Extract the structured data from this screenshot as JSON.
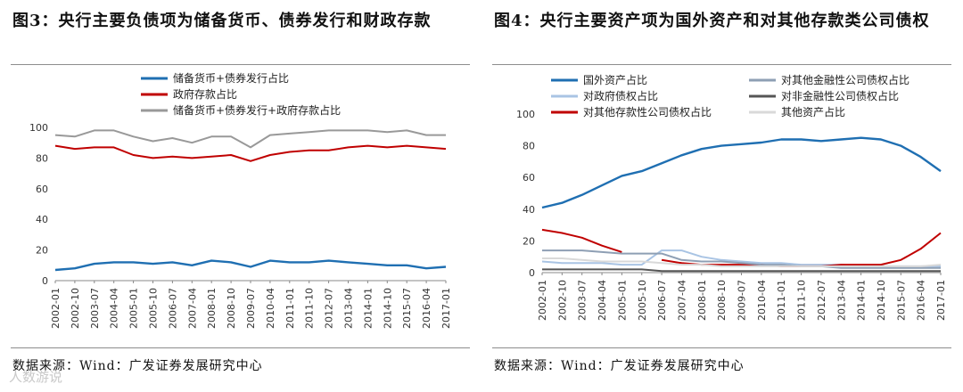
{
  "watermark": "人数游说",
  "chart_data": [
    {
      "type": "line",
      "title": "图3：央行主要负债项为储备货币、债券发行和财政存款",
      "source": "数据来源：Wind：广发证券发展研究中心",
      "ylim": [
        0,
        100
      ],
      "yticks": [
        "0",
        "20",
        "40",
        "60",
        "80",
        "100"
      ],
      "xticks": [
        "2002-01",
        "2002-10",
        "2003-07",
        "2004-04",
        "2005-01",
        "2005-10",
        "2006-07",
        "2007-04",
        "2008-01",
        "2008-10",
        "2009-07",
        "2010-04",
        "2011-01",
        "2011-10",
        "2012-07",
        "2013-04",
        "2014-01",
        "2014-10",
        "2015-07",
        "2016-04",
        "2017-01"
      ],
      "series": [
        {
          "name": "储备货币+债券发行占比",
          "color": "#1f6fb2",
          "values": [
            7,
            8,
            11,
            12,
            12,
            11,
            12,
            10,
            13,
            12,
            9,
            13,
            12,
            12,
            13,
            12,
            11,
            10,
            10,
            8,
            9
          ]
        },
        {
          "name": "政府存款占比",
          "color": "#c00000",
          "values": [
            88,
            86,
            87,
            87,
            82,
            80,
            81,
            80,
            81,
            82,
            78,
            82,
            84,
            85,
            85,
            87,
            88,
            87,
            88,
            87,
            86
          ]
        },
        {
          "name": "储备货币+债券发行+政府存款占比",
          "color": "#999999",
          "values": [
            95,
            94,
            98,
            98,
            94,
            91,
            93,
            90,
            94,
            94,
            87,
            95,
            96,
            97,
            98,
            98,
            98,
            97,
            98,
            95,
            95
          ]
        }
      ]
    },
    {
      "type": "line",
      "title": "图4：央行主要资产项为国外资产和对其他存款类公司债权",
      "source": "数据来源：Wind：广发证券发展研究中心",
      "ylim": [
        0,
        100
      ],
      "yticks": [
        "0",
        "20",
        "40",
        "60",
        "80",
        "100"
      ],
      "xticks": [
        "2002-01",
        "2002-10",
        "2003-07",
        "2004-04",
        "2005-01",
        "2005-10",
        "2006-07",
        "2007-04",
        "2008-01",
        "2008-10",
        "2009-07",
        "2010-04",
        "2011-01",
        "2011-10",
        "2012-07",
        "2013-04",
        "2014-01",
        "2014-10",
        "2015-07",
        "2016-04",
        "2017-01"
      ],
      "series": [
        {
          "name": "国外资产占比",
          "color": "#1f6fb2",
          "values": [
            41,
            44,
            49,
            55,
            61,
            64,
            69,
            74,
            78,
            80,
            81,
            82,
            84,
            84,
            83,
            84,
            85,
            84,
            80,
            73,
            64
          ]
        },
        {
          "name": "对政府债权占比",
          "color": "#a9c4e4",
          "values": [
            7,
            6,
            6,
            6,
            5,
            5,
            14,
            14,
            10,
            8,
            7,
            6,
            6,
            5,
            5,
            5,
            4,
            4,
            4,
            4,
            4
          ]
        },
        {
          "name": "对其他存款性公司债权占比",
          "color": "#c00000",
          "values": [
            27,
            25,
            22,
            17,
            13,
            null,
            8,
            6,
            5,
            5,
            5,
            5,
            4,
            4,
            4,
            5,
            5,
            5,
            8,
            15,
            25
          ]
        },
        {
          "name": "对其他金融性公司债权占比",
          "color": "#8e9fb4",
          "values": [
            14,
            14,
            14,
            13,
            12,
            12,
            12,
            8,
            7,
            7,
            6,
            5,
            5,
            4,
            4,
            3,
            3,
            3,
            3,
            3,
            3
          ]
        },
        {
          "name": "对非金融性公司债权占比",
          "color": "#555555",
          "values": [
            2,
            2,
            2,
            2,
            2,
            2,
            1,
            1,
            1,
            1,
            1,
            1,
            1,
            1,
            1,
            1,
            1,
            1,
            1,
            1,
            1
          ]
        },
        {
          "name": "其他资产占比",
          "color": "#d9d9d9",
          "values": [
            9,
            9,
            8,
            7,
            7,
            7,
            6,
            5,
            5,
            4,
            4,
            4,
            4,
            4,
            4,
            4,
            4,
            4,
            4,
            4,
            5
          ]
        }
      ]
    }
  ]
}
